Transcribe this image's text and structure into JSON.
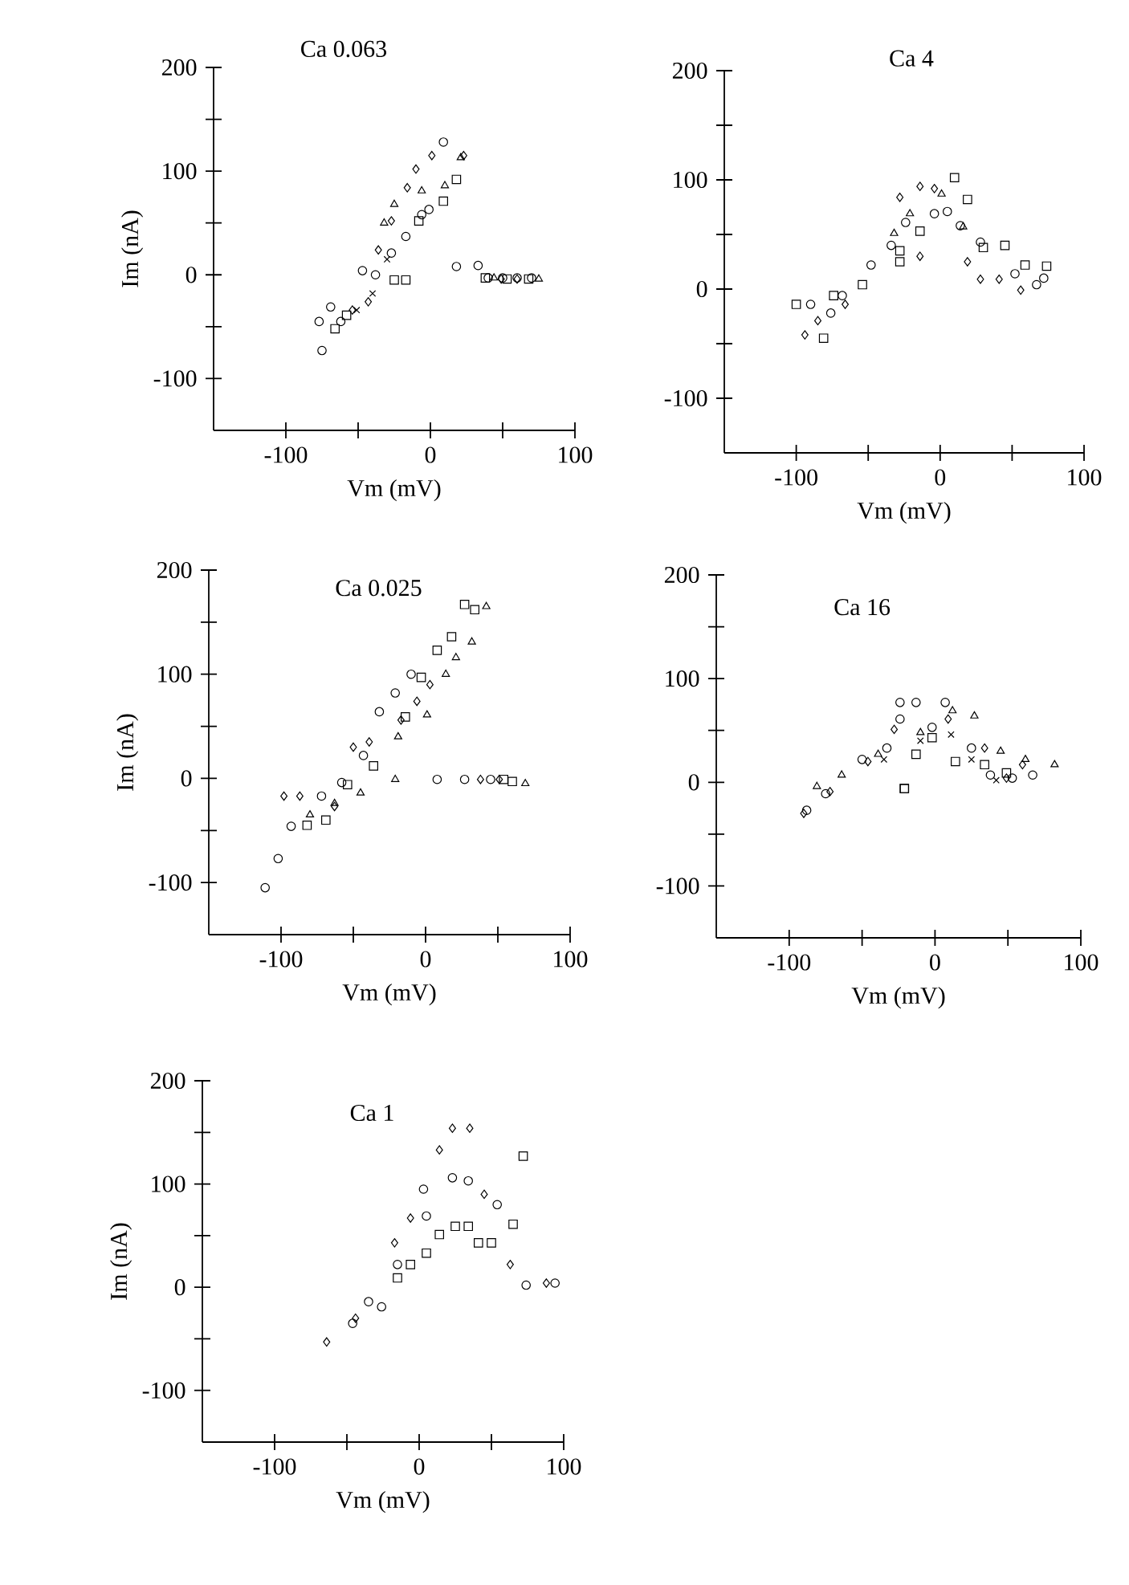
{
  "chart_data": [
    {
      "type": "scatter",
      "title": "Ca 0.063",
      "xlabel": "Vm (mV)",
      "ylabel": "Im (nA)",
      "xlim": [
        -150,
        100
      ],
      "ylim": [
        -150,
        200
      ],
      "xticks": [
        -100,
        0,
        100
      ],
      "yticks": [
        -100,
        0,
        100,
        200
      ],
      "series": [
        {
          "color": "#000000",
          "marker": "circle",
          "x": [
            -75,
            -77,
            -69,
            -62,
            -47,
            -38,
            -27,
            -17,
            -6,
            -1,
            9,
            18,
            33,
            40,
            50,
            60,
            70
          ],
          "values": [
            -73,
            -45,
            -31,
            -45,
            4,
            0,
            21,
            37,
            58,
            63,
            128,
            8,
            9,
            -3,
            -3,
            -3,
            -3
          ]
        },
        {
          "color": "#000000",
          "marker": "square",
          "x": [
            -66,
            -58,
            -25,
            -17,
            -8,
            9,
            18,
            38,
            53,
            68
          ],
          "values": [
            -52,
            -39,
            -5,
            -5,
            52,
            71,
            92,
            -3,
            -4,
            -4
          ]
        },
        {
          "color": "#000000",
          "marker": "triangle",
          "x": [
            -32,
            -25,
            -6,
            10,
            21,
            44,
            75
          ],
          "values": [
            50,
            68,
            81,
            86,
            113,
            -3,
            -4
          ]
        },
        {
          "color": "#000000",
          "marker": "diamond",
          "x": [
            -54,
            -43,
            -36,
            -27,
            -16,
            -10,
            1,
            23,
            49,
            60
          ],
          "values": [
            -34,
            -26,
            24,
            52,
            84,
            102,
            115,
            115,
            -4,
            -4
          ]
        },
        {
          "color": "#000000",
          "marker": "cross",
          "x": [
            -51,
            -40,
            -30
          ],
          "values": [
            -34,
            -18,
            15
          ]
        }
      ]
    },
    {
      "type": "scatter",
      "title": "Ca 4",
      "xlabel": "Vm (mV)",
      "xlim": [
        -150,
        100
      ],
      "ylim": [
        -150,
        200
      ],
      "xticks": [
        -100,
        0,
        100
      ],
      "yticks": [
        -100,
        0,
        100,
        200
      ],
      "series": [
        {
          "color": "#000000",
          "marker": "square",
          "x": [
            -100,
            -81,
            -74,
            -54,
            -28,
            -28,
            -14,
            10,
            19,
            30,
            45,
            59,
            74
          ],
          "values": [
            -14,
            -45,
            -6,
            4,
            35,
            25,
            53,
            102,
            82,
            38,
            40,
            22,
            21
          ]
        },
        {
          "color": "#000000",
          "marker": "circle",
          "x": [
            -90,
            -76,
            -68,
            -48,
            -34,
            -24,
            -4,
            5,
            14,
            28,
            52,
            67,
            72
          ],
          "values": [
            -14,
            -22,
            -6,
            22,
            40,
            61,
            69,
            71,
            58,
            43,
            14,
            4,
            10
          ]
        },
        {
          "color": "#000000",
          "marker": "diamond",
          "x": [
            -94,
            -85,
            -66,
            -28,
            -14,
            -14,
            -4,
            19,
            28,
            41,
            56
          ],
          "values": [
            -42,
            -29,
            -14,
            84,
            30,
            94,
            92,
            25,
            9,
            9,
            -1
          ]
        },
        {
          "color": "#000000",
          "marker": "triangle",
          "x": [
            -32,
            -21,
            1,
            16
          ],
          "values": [
            51,
            69,
            87,
            57
          ]
        }
      ]
    },
    {
      "type": "scatter",
      "title": "Ca 0.025",
      "xlabel": "Vm (mV)",
      "ylabel": "Im (nA)",
      "xlim": [
        -150,
        100
      ],
      "ylim": [
        -150,
        200
      ],
      "xticks": [
        -100,
        0,
        100
      ],
      "yticks": [
        -100,
        0,
        100,
        200
      ],
      "series": [
        {
          "color": "#000000",
          "marker": "circle",
          "x": [
            -111,
            -102,
            -93,
            -72,
            -58,
            -43,
            -32,
            -21,
            -10,
            8,
            27,
            45
          ],
          "values": [
            -105,
            -77,
            -46,
            -17,
            -4,
            22,
            64,
            82,
            100,
            -1,
            -1,
            -1
          ]
        },
        {
          "color": "#000000",
          "marker": "square",
          "x": [
            -82,
            -69,
            -54,
            -36,
            -14,
            -3,
            8,
            18,
            27,
            34,
            54,
            60
          ],
          "values": [
            -45,
            -40,
            -6,
            12,
            59,
            97,
            123,
            136,
            167,
            162,
            -1,
            -3
          ]
        },
        {
          "color": "#000000",
          "marker": "triangle",
          "x": [
            -80,
            -63,
            -45,
            -21,
            -19,
            1,
            14,
            21,
            32,
            42,
            69
          ],
          "values": [
            -35,
            -24,
            -14,
            -1,
            40,
            61,
            100,
            116,
            131,
            165,
            -5
          ]
        },
        {
          "color": "#000000",
          "marker": "diamond",
          "x": [
            -98,
            -87,
            -63,
            -50,
            -39,
            -17,
            -6,
            3,
            38,
            51
          ],
          "values": [
            -17,
            -17,
            -27,
            30,
            35,
            56,
            74,
            90,
            -1,
            -1
          ]
        }
      ]
    },
    {
      "type": "scatter",
      "title": "Ca 16",
      "xlabel": "Vm (mV)",
      "xlim": [
        -150,
        100
      ],
      "ylim": [
        -150,
        200
      ],
      "xticks": [
        -100,
        0,
        100
      ],
      "yticks": [
        -100,
        0,
        100,
        200
      ],
      "series": [
        {
          "color": "#000000",
          "marker": "circle",
          "x": [
            -88,
            -75,
            -50,
            -33,
            -24,
            -24,
            -13,
            -2,
            7,
            25,
            38,
            53,
            67
          ],
          "values": [
            -27,
            -11,
            22,
            33,
            61,
            77,
            77,
            53,
            77,
            33,
            7,
            4,
            7
          ]
        },
        {
          "color": "#000000",
          "marker": "square",
          "x": [
            -21,
            -21,
            -13,
            -2,
            14,
            34,
            49
          ],
          "values": [
            -6,
            -6,
            27,
            43,
            20,
            17,
            9
          ]
        },
        {
          "color": "#000000",
          "marker": "triangle",
          "x": [
            -81,
            -64,
            -39,
            -10,
            12,
            27,
            45,
            62,
            82
          ],
          "values": [
            -4,
            7,
            27,
            48,
            69,
            64,
            30,
            22,
            17
          ]
        },
        {
          "color": "#000000",
          "marker": "diamond",
          "x": [
            -90,
            -72,
            -46,
            -28,
            9,
            34,
            49,
            60
          ],
          "values": [
            -30,
            -9,
            20,
            51,
            61,
            33,
            4,
            17
          ]
        },
        {
          "color": "#000000",
          "marker": "cross",
          "x": [
            -35,
            -10,
            11,
            25,
            42
          ],
          "values": [
            22,
            40,
            46,
            22,
            2
          ]
        }
      ]
    },
    {
      "type": "scatter",
      "title": "Ca 1",
      "xlabel": "Vm (mV)",
      "ylabel": "Im (nA)",
      "xlim": [
        -150,
        100
      ],
      "ylim": [
        -150,
        200
      ],
      "xticks": [
        -100,
        0,
        100
      ],
      "yticks": [
        -100,
        0,
        100,
        200
      ],
      "series": [
        {
          "color": "#000000",
          "marker": "diamond",
          "x": [
            -64,
            -44,
            -17,
            -6,
            14,
            23,
            35,
            45,
            63,
            88
          ],
          "values": [
            -53,
            -30,
            43,
            67,
            133,
            154,
            154,
            90,
            22,
            4
          ]
        },
        {
          "color": "#000000",
          "marker": "circle",
          "x": [
            -46,
            -35,
            -26,
            -15,
            3,
            5,
            23,
            34,
            54,
            74,
            94
          ],
          "values": [
            -35,
            -14,
            -19,
            22,
            95,
            69,
            106,
            103,
            80,
            2,
            4
          ]
        },
        {
          "color": "#000000",
          "marker": "square",
          "x": [
            -15,
            -6,
            5,
            14,
            25,
            34,
            41,
            50,
            65,
            72
          ],
          "values": [
            9,
            22,
            33,
            51,
            59,
            59,
            43,
            43,
            61,
            127
          ]
        }
      ]
    }
  ]
}
